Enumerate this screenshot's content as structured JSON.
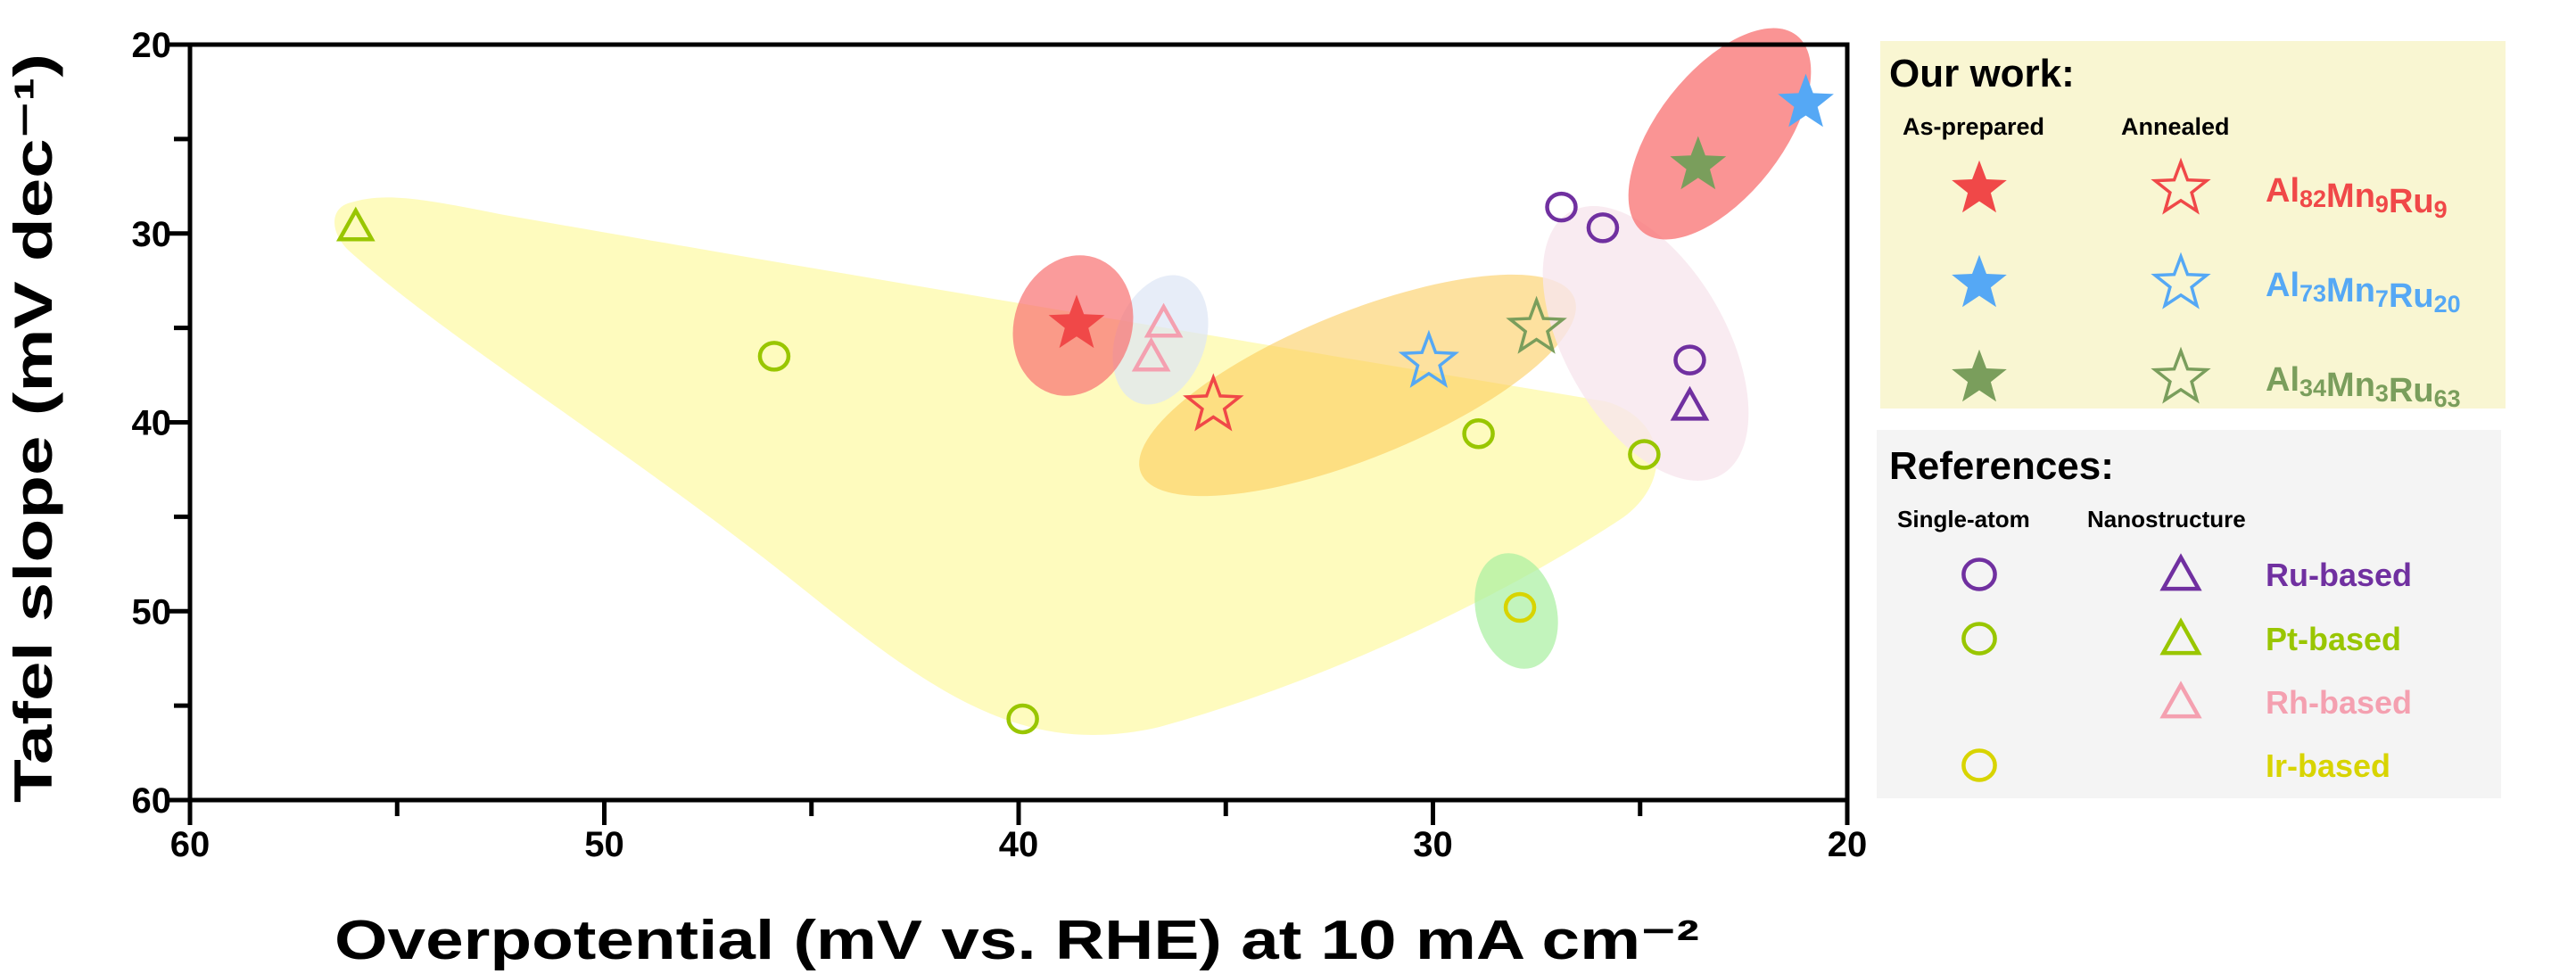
{
  "chart_data": {
    "type": "scatter",
    "xlabel": "Overpotential (mV vs. RHE) at 10 mA cm⁻²",
    "ylabel": "Tafel slope (mV dec⁻¹)",
    "xlim": [
      60,
      20
    ],
    "ylim": [
      60,
      20
    ],
    "x_reversed": true,
    "y_reversed": true,
    "xticks": [
      "60",
      "50",
      "40",
      "30",
      "20"
    ],
    "yticks": [
      "20",
      "30",
      "40",
      "50",
      "60"
    ],
    "grid": false,
    "legend_placement": "right",
    "legend": {
      "our_work": {
        "title": "Our work:",
        "col1": "As-prepared",
        "col2": "Annealed",
        "rows": [
          {
            "label": "Al82Mn9Ru9",
            "base": [
              "Al",
              "Mn",
              "Ru"
            ],
            "subs": [
              "82",
              "9",
              "9"
            ],
            "color": "#f04848"
          },
          {
            "label": "Al73Mn7Ru20",
            "base": [
              "Al",
              "Mn",
              "Ru"
            ],
            "subs": [
              "73",
              "7",
              "20"
            ],
            "color": "#55a8f5"
          },
          {
            "label": "Al34Mn3Ru63",
            "base": [
              "Al",
              "Mn",
              "Ru"
            ],
            "subs": [
              "34",
              "3",
              "63"
            ],
            "color": "#7a9e5c"
          }
        ]
      },
      "references": {
        "title": "References:",
        "col1": "Single-atom",
        "col2": "Nanostructure",
        "rows": [
          {
            "label": "Ru-based",
            "color": "#7030a0",
            "circle": true,
            "triangle": true
          },
          {
            "label": "Pt-based",
            "color": "#99c600",
            "circle": true,
            "triangle": true
          },
          {
            "label": "Rh-based",
            "color": "#f4a0b0",
            "circle": false,
            "triangle": true
          },
          {
            "label": "Ir-based",
            "color": "#d8d400",
            "circle": true,
            "triangle": false
          }
        ]
      }
    },
    "points": [
      {
        "series": "Al82Mn9Ru9",
        "marker": "star-filled",
        "color": "#f04848",
        "x": 38.6,
        "y": 34.8
      },
      {
        "series": "Al82Mn9Ru9",
        "marker": "star-open",
        "color": "#f04848",
        "x": 35.3,
        "y": 39.1
      },
      {
        "series": "Al73Mn7Ru20",
        "marker": "star-filled",
        "color": "#55a8f5",
        "x": 21.0,
        "y": 23.1
      },
      {
        "series": "Al73Mn7Ru20",
        "marker": "star-open",
        "color": "#55a8f5",
        "x": 30.1,
        "y": 36.8
      },
      {
        "series": "Al34Mn3Ru63",
        "marker": "star-filled",
        "color": "#7a9e5c",
        "x": 23.6,
        "y": 26.4
      },
      {
        "series": "Al34Mn3Ru63",
        "marker": "star-open",
        "color": "#7a9e5c",
        "x": 27.5,
        "y": 35.0
      },
      {
        "series": "Ru-based",
        "marker": "circle",
        "color": "#7030a0",
        "x": 26.9,
        "y": 28.6
      },
      {
        "series": "Ru-based",
        "marker": "circle",
        "color": "#7030a0",
        "x": 25.9,
        "y": 29.7
      },
      {
        "series": "Ru-based",
        "marker": "circle",
        "color": "#7030a0",
        "x": 23.8,
        "y": 36.7
      },
      {
        "series": "Ru-based",
        "marker": "triangle",
        "color": "#7030a0",
        "x": 23.8,
        "y": 39.2
      },
      {
        "series": "Pt-based",
        "marker": "triangle",
        "color": "#99c600",
        "x": 56.0,
        "y": 29.7
      },
      {
        "series": "Pt-based",
        "marker": "circle",
        "color": "#99c600",
        "x": 45.9,
        "y": 36.5
      },
      {
        "series": "Pt-based",
        "marker": "circle",
        "color": "#99c600",
        "x": 28.9,
        "y": 40.6
      },
      {
        "series": "Pt-based",
        "marker": "circle",
        "color": "#99c600",
        "x": 24.9,
        "y": 41.7
      },
      {
        "series": "Pt-based",
        "marker": "circle",
        "color": "#99c600",
        "x": 39.9,
        "y": 55.7
      },
      {
        "series": "Rh-based",
        "marker": "triangle",
        "color": "#f4a0b0",
        "x": 36.5,
        "y": 34.8
      },
      {
        "series": "Rh-based",
        "marker": "triangle",
        "color": "#f4a0b0",
        "x": 36.8,
        "y": 36.6
      },
      {
        "series": "Ir-based",
        "marker": "circle",
        "color": "#d8d400",
        "x": 27.9,
        "y": 49.8
      }
    ]
  }
}
